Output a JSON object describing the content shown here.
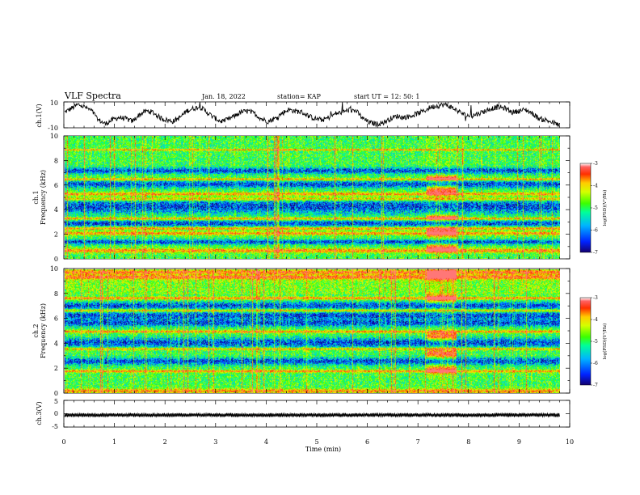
{
  "header": {
    "title": "VLF Spectra",
    "date": "Jan. 18, 2022",
    "station": "station= KAP",
    "start": "start  UT =   12: 50: 1"
  },
  "chart_data": [
    {
      "type": "line",
      "panel": "ch1-waveform",
      "ylabel": "ch.1(V)",
      "ylim": [
        -10,
        10
      ],
      "yticks": [
        "10",
        "-10"
      ],
      "xlim": [
        0,
        10
      ],
      "approx_trace_v": [
        2,
        5,
        8,
        6,
        3,
        -4,
        -7,
        -4,
        -2,
        -3,
        -5,
        0,
        3,
        2,
        -2,
        -4,
        -5,
        -2,
        3,
        5,
        6,
        2,
        -2,
        -5,
        -4,
        -1,
        2,
        3,
        1,
        -3,
        -5,
        -3,
        1,
        4,
        3,
        2,
        -1,
        -3,
        -4,
        -2,
        1,
        2,
        4,
        3,
        -3,
        -6,
        -7,
        -6,
        -3,
        -1,
        -2,
        -1,
        1,
        3,
        6,
        7,
        8,
        6,
        3,
        0,
        -1,
        1,
        3,
        5,
        6,
        5,
        2,
        3,
        4,
        1,
        -3,
        -4,
        -6,
        -8
      ],
      "x_end_min": 9.8
    },
    {
      "type": "heatmap",
      "panel": "ch1-spectrogram",
      "ylabel_channel": "ch.1",
      "ylabel": "Frequency (kHz)",
      "ylim": [
        0,
        10
      ],
      "yticks": [
        "0",
        "2",
        "4",
        "6",
        "8",
        "10"
      ],
      "xlim": [
        0,
        10
      ],
      "colorbar": {
        "range": [
          -7,
          -3
        ],
        "ticks": [
          "-3",
          "-4",
          "-5",
          "-6",
          "-7"
        ],
        "label": "log(PSD)(V²/Hz)"
      }
    },
    {
      "type": "heatmap",
      "panel": "ch2-spectrogram",
      "ylabel_channel": "ch.2",
      "ylabel": "Frequency (kHz)",
      "ylim": [
        0,
        10
      ],
      "yticks": [
        "0",
        "2",
        "4",
        "6",
        "8",
        "10"
      ],
      "xlim": [
        0,
        10
      ],
      "colorbar": {
        "range": [
          -7,
          -3
        ],
        "ticks": [
          "-3",
          "-4",
          "-5",
          "-6",
          "-7"
        ],
        "label": "log(PSD)(V²/Hz)"
      }
    },
    {
      "type": "line",
      "panel": "ch3-waveform",
      "ylabel": "ch.3(V)",
      "ylim": [
        -5,
        5
      ],
      "yticks": [
        "5",
        "0",
        "-5"
      ],
      "xlim": [
        0,
        10
      ],
      "level_v": -0.5
    }
  ],
  "xaxis": {
    "label": "Time  (min)",
    "ticks": [
      "0",
      "1",
      "2",
      "3",
      "4",
      "5",
      "6",
      "7",
      "8",
      "9",
      "10"
    ]
  },
  "colors": {
    "trace": "#000000",
    "colormap": [
      "#1a0a8c",
      "#0033ff",
      "#00a0ff",
      "#00ffb0",
      "#38ff00",
      "#c8ff00",
      "#ffe000",
      "#ff6000",
      "#ff0000",
      "#ffffff"
    ]
  }
}
